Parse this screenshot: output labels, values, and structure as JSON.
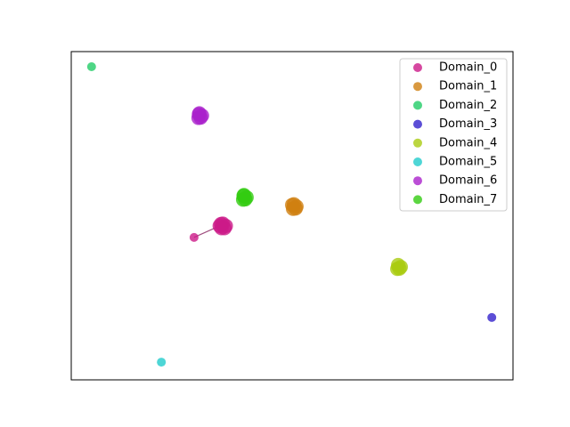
{
  "chart_data": {
    "type": "scatter",
    "xlim": [
      0,
      100
    ],
    "ylim": [
      0,
      100
    ],
    "legend": "upper right",
    "series": [
      {
        "name": "Domain_0",
        "color": "#cc1a88",
        "x": [
          27.8,
          33.6,
          34.3,
          35.0,
          34.0,
          34.7,
          33.9
        ],
        "y": [
          43.4,
          46.9,
          47.6,
          46.9,
          46.2,
          46.2,
          47.5
        ]
      },
      {
        "name": "Domain_1",
        "color": "#d08010",
        "x": [
          49.8,
          50.4,
          51.0,
          50.2,
          50.8,
          50.0
        ],
        "y": [
          52.8,
          53.5,
          52.8,
          52.1,
          52.2,
          53.3
        ]
      },
      {
        "name": "Domain_2",
        "color": "#22cc66",
        "x": [
          4.6
        ],
        "y": [
          95.4
        ]
      },
      {
        "name": "Domain_3",
        "color": "#3322cc",
        "x": [
          95.2
        ],
        "y": [
          19.0
        ]
      },
      {
        "name": "Domain_4",
        "color": "#aacc11",
        "x": [
          73.4,
          74.0,
          74.6,
          73.8,
          74.3
        ],
        "y": [
          34.4,
          35.0,
          34.4,
          33.8,
          33.9
        ]
      },
      {
        "name": "Domain_5",
        "color": "#22cccc",
        "x": [
          20.4
        ],
        "y": [
          5.4
        ]
      },
      {
        "name": "Domain_6",
        "color": "#aa22cc",
        "x": [
          28.4,
          29.0,
          29.6,
          28.8,
          29.3,
          28.9
        ],
        "y": [
          80.5,
          81.2,
          80.5,
          79.8,
          79.9,
          80.9
        ]
      },
      {
        "name": "Domain_7",
        "color": "#33cc11",
        "x": [
          38.5,
          39.1,
          39.7,
          38.9,
          39.4,
          39.0
        ],
        "y": [
          55.6,
          56.3,
          55.6,
          54.9,
          55.0,
          56.1
        ]
      }
    ]
  }
}
